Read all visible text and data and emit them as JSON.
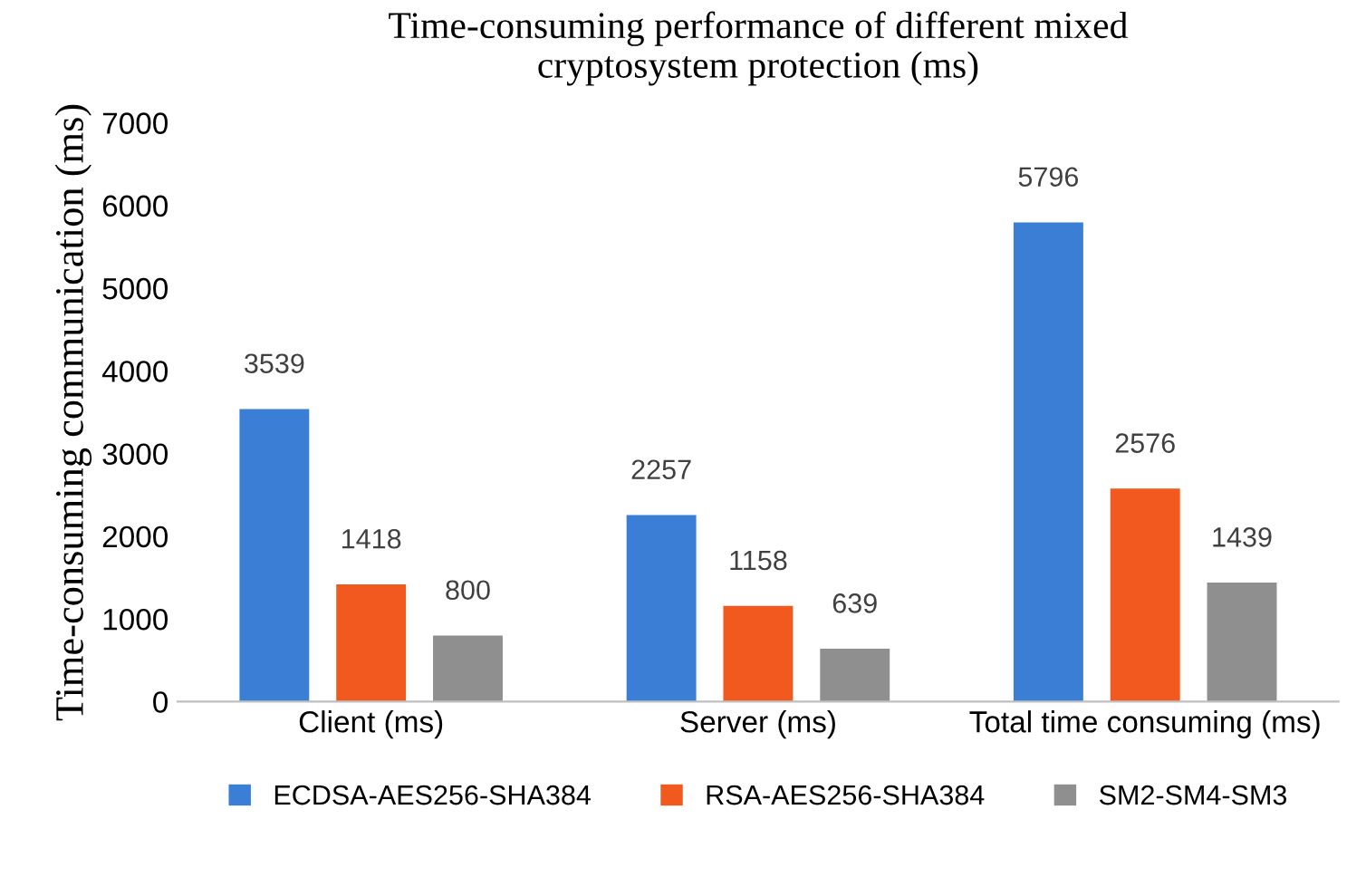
{
  "chart_data": {
    "type": "bar",
    "title": "Time-consuming performance of different mixed\ncryptosystem protection (ms)",
    "ylabel": "Time-consuming communication (ms)",
    "categories": [
      "Client (ms)",
      "Server (ms)",
      "Total time consuming (ms)"
    ],
    "series": [
      {
        "name": "ECDSA-AES256-SHA384",
        "color": "#3a7fd5",
        "values": [
          3539,
          2257,
          5796
        ]
      },
      {
        "name": "RSA-AES256-SHA384",
        "color": "#f2591e",
        "values": [
          1418,
          1158,
          2576
        ]
      },
      {
        "name": "SM2-SM4-SM3",
        "color": "#8f8f8f",
        "values": [
          800,
          639,
          1439
        ]
      }
    ],
    "ylim": [
      0,
      7000
    ],
    "yticks": [
      0,
      1000,
      2000,
      3000,
      4000,
      5000,
      6000,
      7000
    ],
    "grid": false,
    "legend": "bottom",
    "data_labels": true
  }
}
